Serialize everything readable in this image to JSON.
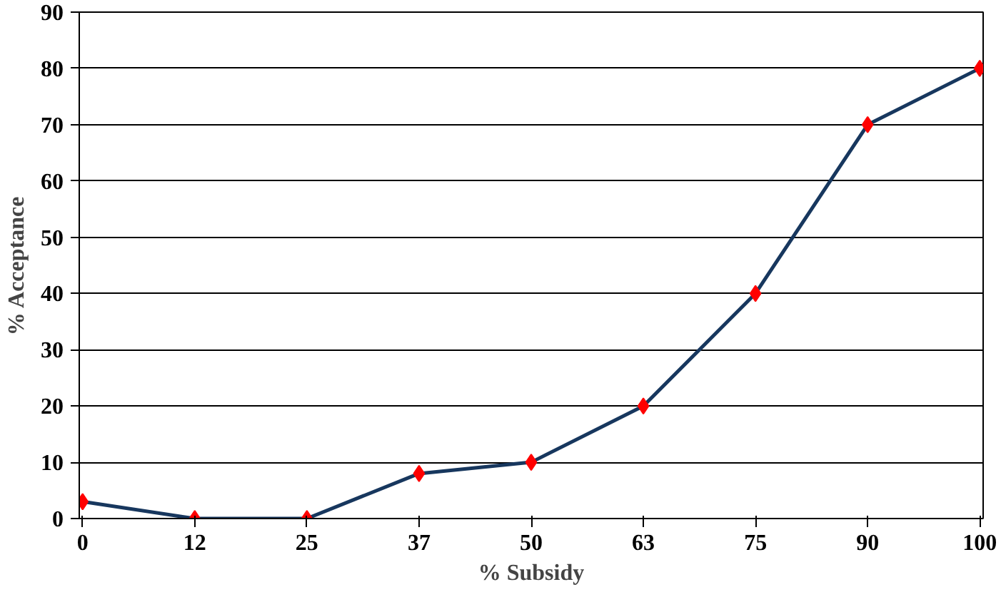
{
  "chart_data": {
    "type": "line",
    "xlabel": "% Subsidy",
    "ylabel": "% Acceptance",
    "categories": [
      "0",
      "12",
      "25",
      "37",
      "50",
      "63",
      "75",
      "90",
      "100"
    ],
    "series": [
      {
        "color": "#17375e",
        "values": [
          3,
          0,
          0,
          8,
          10,
          20,
          40,
          70,
          80
        ]
      }
    ],
    "ylim": [
      0,
      90
    ],
    "yticks": [
      0,
      10,
      20,
      30,
      40,
      50,
      60,
      70,
      80,
      90
    ],
    "grid": "y",
    "marker": "diamond",
    "line_style": "solid"
  }
}
